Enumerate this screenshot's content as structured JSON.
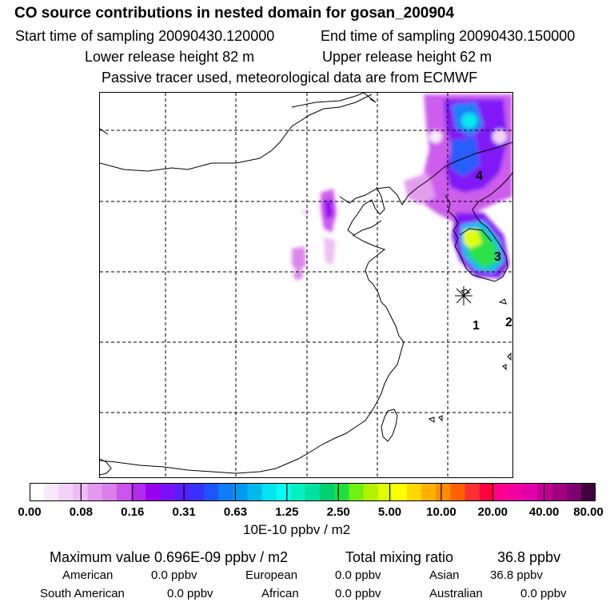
{
  "header": {
    "title": "CO  source contributions in nested domain for gosan_200904",
    "start_label": "Start time of sampling 20090430.120000",
    "end_label": "End time of sampling 20090430.150000",
    "lower_label": "Lower release height   82 m",
    "upper_label": "Upper release height   62 m",
    "note": "Passive tracer used, meteorological data are from ECMWF"
  },
  "map": {
    "site_labels": [
      "1",
      "2",
      "3",
      "4"
    ]
  },
  "chart_data": {
    "type": "heatmap",
    "title": "CO  source contributions in nested domain for gosan_200904",
    "colorbar": {
      "units": "10E-10 ppbv / m2",
      "ticks": [
        "0.00",
        "0.08",
        "0.16",
        "0.31",
        "0.63",
        "1.25",
        "2.50",
        "5.00",
        "10.00",
        "20.00",
        "40.00",
        "80.00"
      ],
      "colors": [
        "#ffffff",
        "#f8e8fb",
        "#f2d3f7",
        "#ebbdf2",
        "#e399ee",
        "#d980ea",
        "#cb55ec",
        "#b22aeb",
        "#9900ee",
        "#7a10f5",
        "#5a1cfb",
        "#3a30ff",
        "#1f54fb",
        "#0f7cf8",
        "#0099f0",
        "#00b8ea",
        "#00e5ee",
        "#00fff0",
        "#00f0c0",
        "#00e0a0",
        "#00d070",
        "#20e040",
        "#70f010",
        "#b0f000",
        "#e0ff00",
        "#ffff00",
        "#ffd800",
        "#ffb000",
        "#ff8c00",
        "#ff6000",
        "#ff3030",
        "#ff0040",
        "#ff0090",
        "#f000a0",
        "#e000a8",
        "#c00090",
        "#a00080",
        "#800070",
        "#400040"
      ]
    }
  },
  "footer": {
    "max_label": "Maximum value  0.696E-09 ppbv / m2",
    "total_label": "Total mixing ratio",
    "total_value": "36.8 ppbv",
    "american_label": "American",
    "american_value": "0.0 ppbv",
    "european_label": "European",
    "european_value": "0.0 ppbv",
    "asian_label": "Asian",
    "asian_value": "36.8 ppbv",
    "south_american_label": "South American",
    "south_american_value": "0.0 ppbv",
    "african_label": "African",
    "african_value": "0.0 ppbv",
    "australian_label": "Australian",
    "australian_value": "0.0 ppbv"
  }
}
